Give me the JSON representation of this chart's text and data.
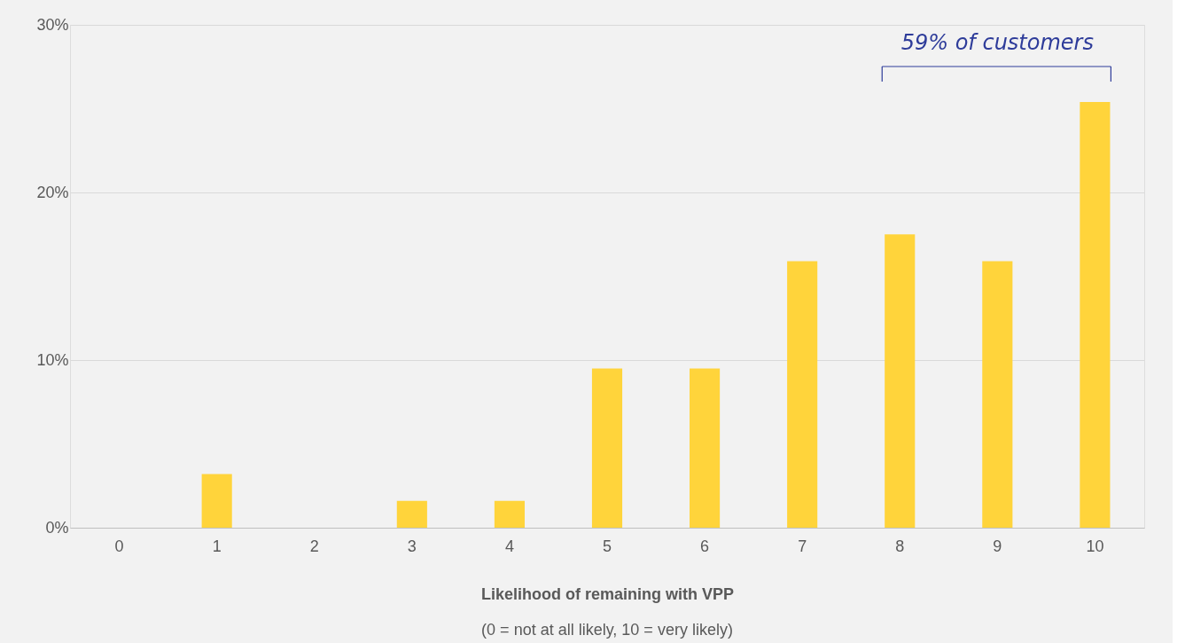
{
  "chart_data": {
    "type": "bar",
    "categories": [
      "0",
      "1",
      "2",
      "3",
      "4",
      "5",
      "6",
      "7",
      "8",
      "9",
      "10"
    ],
    "values": [
      0,
      3.2,
      0,
      1.6,
      1.6,
      9.5,
      9.5,
      15.9,
      17.5,
      15.9,
      25.4
    ],
    "color": "#ffd43b",
    "xlabel": "Likelihood of remaining with VPP",
    "ylim": [
      0,
      30
    ],
    "yticks": [
      {
        "value": 0,
        "label": "0%"
      },
      {
        "value": 10,
        "label": "10%"
      },
      {
        "value": 20,
        "label": "20%"
      },
      {
        "value": 30,
        "label": "30%"
      }
    ],
    "grid": "y",
    "annotations": [
      "59% of customers",
      "(0 = not at all likely, 10 = very likely)"
    ]
  }
}
